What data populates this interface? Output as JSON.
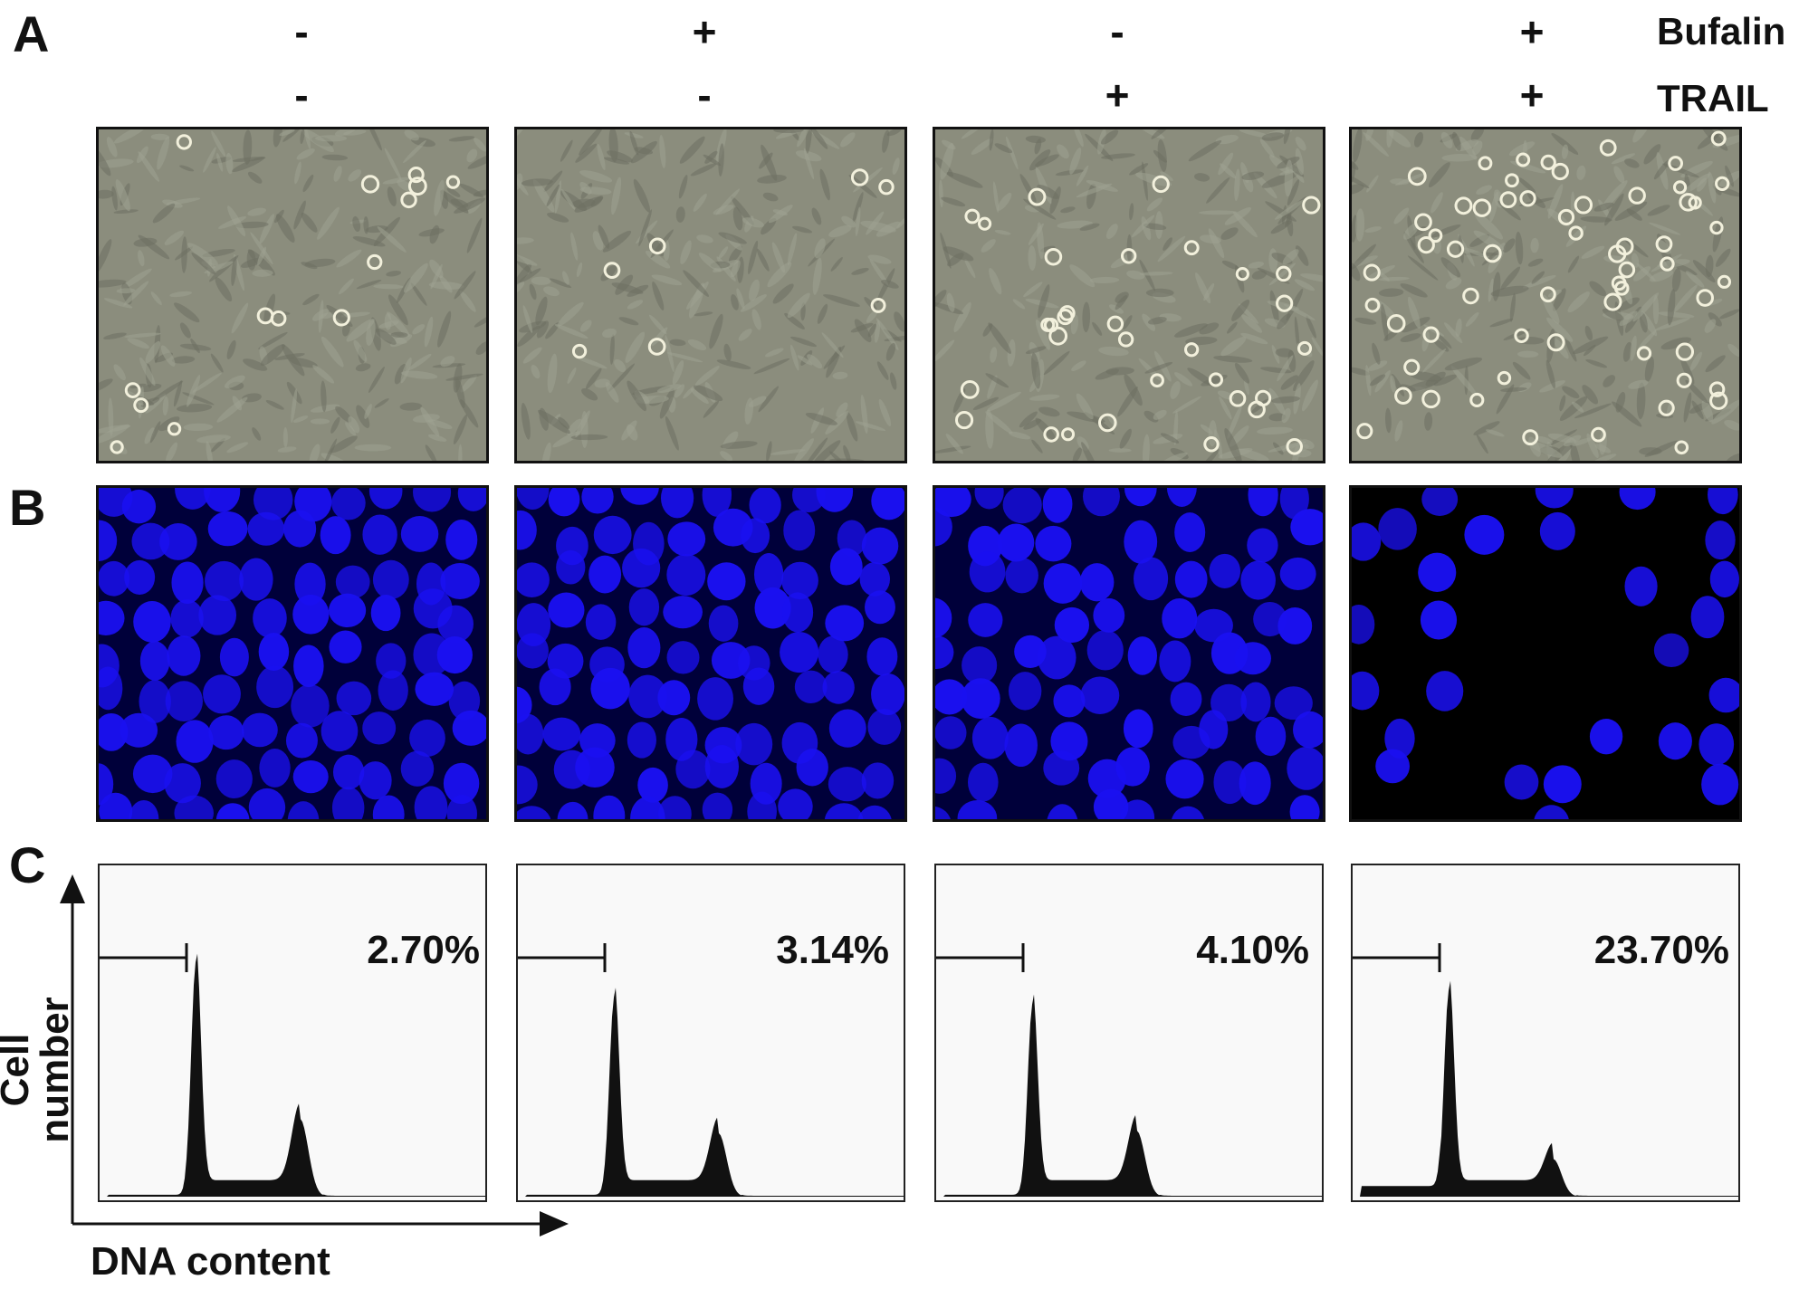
{
  "panel_labels": {
    "a": "A",
    "b": "B",
    "c": "C"
  },
  "treatments": [
    {
      "name": "Bufalin",
      "signs": [
        "-",
        "+",
        "-",
        "+"
      ]
    },
    {
      "name": "TRAIL",
      "signs": [
        "-",
        "-",
        "+",
        "+"
      ]
    }
  ],
  "percentages": [
    "2.70%",
    "3.14%",
    "4.10%",
    "23.70%"
  ],
  "axes": {
    "ylabel": "Cell number",
    "xlabel": "DNA content"
  },
  "colors": {
    "phase": "#8b8d7d",
    "dapi": "#1a10f0",
    "hist": "#111111"
  },
  "chart_data": {
    "type": "histogram",
    "xlabel": "DNA content",
    "ylabel": "Cell number",
    "series": [
      {
        "percentage": "2.70%",
        "g1_peak": 1.0,
        "g2_peak": 0.33
      },
      {
        "percentage": "3.14%",
        "g1_peak": 0.85,
        "g2_peak": 0.27
      },
      {
        "percentage": "4.10%",
        "g1_peak": 0.82,
        "g2_peak": 0.28
      },
      {
        "percentage": "23.70%",
        "g1_peak": 0.88,
        "g2_peak": 0.16
      }
    ]
  }
}
